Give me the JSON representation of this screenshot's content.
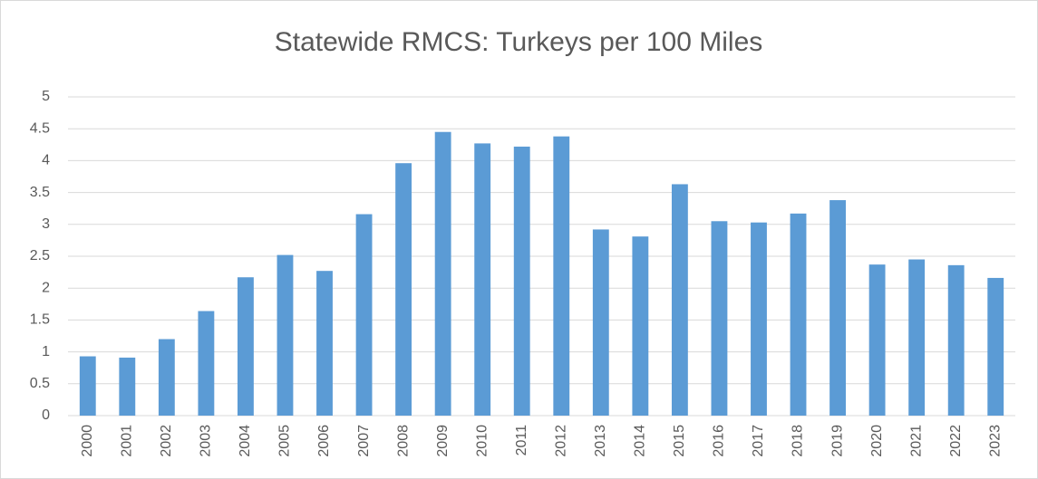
{
  "chart_data": {
    "type": "bar",
    "title": "Statewide RMCS: Turkeys per 100 Miles",
    "categories": [
      "2000",
      "2001",
      "2002",
      "2003",
      "2004",
      "2005",
      "2006",
      "2007",
      "2008",
      "2009",
      "2010",
      "2011",
      "2012",
      "2013",
      "2014",
      "2015",
      "2016",
      "2017",
      "2018",
      "2019",
      "2020",
      "2021",
      "2022",
      "2023"
    ],
    "values": [
      0.93,
      0.91,
      1.2,
      1.64,
      2.17,
      2.52,
      2.27,
      3.16,
      3.96,
      4.45,
      4.27,
      4.22,
      4.38,
      2.92,
      2.81,
      3.63,
      3.05,
      3.03,
      3.17,
      3.38,
      2.37,
      2.45,
      2.36,
      2.16
    ],
    "color": "#5b9bd5",
    "ylim": [
      0,
      5
    ],
    "yticks": [
      0,
      0.5,
      1,
      1.5,
      2,
      2.5,
      3,
      3.5,
      4,
      4.5,
      5
    ],
    "grid": true
  }
}
